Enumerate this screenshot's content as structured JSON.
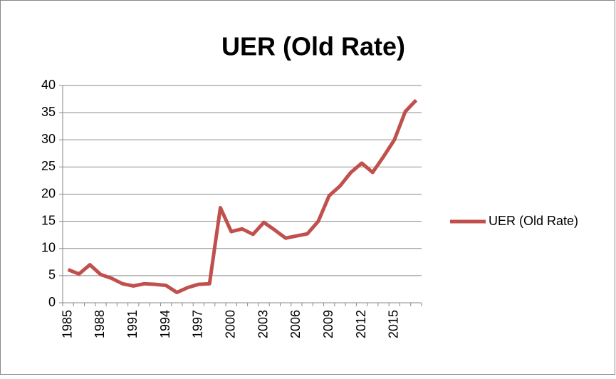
{
  "chart_data": {
    "type": "line",
    "title": "UER (Old Rate)",
    "categories": [
      "1985",
      null,
      null,
      "1988",
      null,
      null,
      "1991",
      null,
      null,
      "1994",
      null,
      null,
      "1997",
      null,
      null,
      "2000",
      null,
      null,
      "2003",
      null,
      null,
      "2006",
      null,
      null,
      "2009",
      null,
      null,
      "2012",
      null,
      null,
      "2015",
      null,
      null
    ],
    "series": [
      {
        "name": "UER (Old Rate)",
        "color": "#c0504d",
        "values": [
          6.1,
          5.3,
          7.0,
          5.2,
          4.5,
          3.5,
          3.1,
          3.5,
          3.4,
          3.2,
          1.9,
          2.8,
          3.4,
          3.5,
          17.5,
          13.1,
          13.6,
          12.6,
          14.8,
          13.4,
          11.9,
          12.3,
          12.7,
          15.0,
          19.7,
          21.5,
          24.0,
          25.7,
          24.0,
          26.9,
          30.0,
          35.2,
          37.3
        ]
      }
    ],
    "ylim": [
      0,
      40
    ],
    "yticks": [
      0,
      5,
      10,
      15,
      20,
      25,
      30,
      35,
      40
    ],
    "grid": true,
    "legend": "right"
  }
}
